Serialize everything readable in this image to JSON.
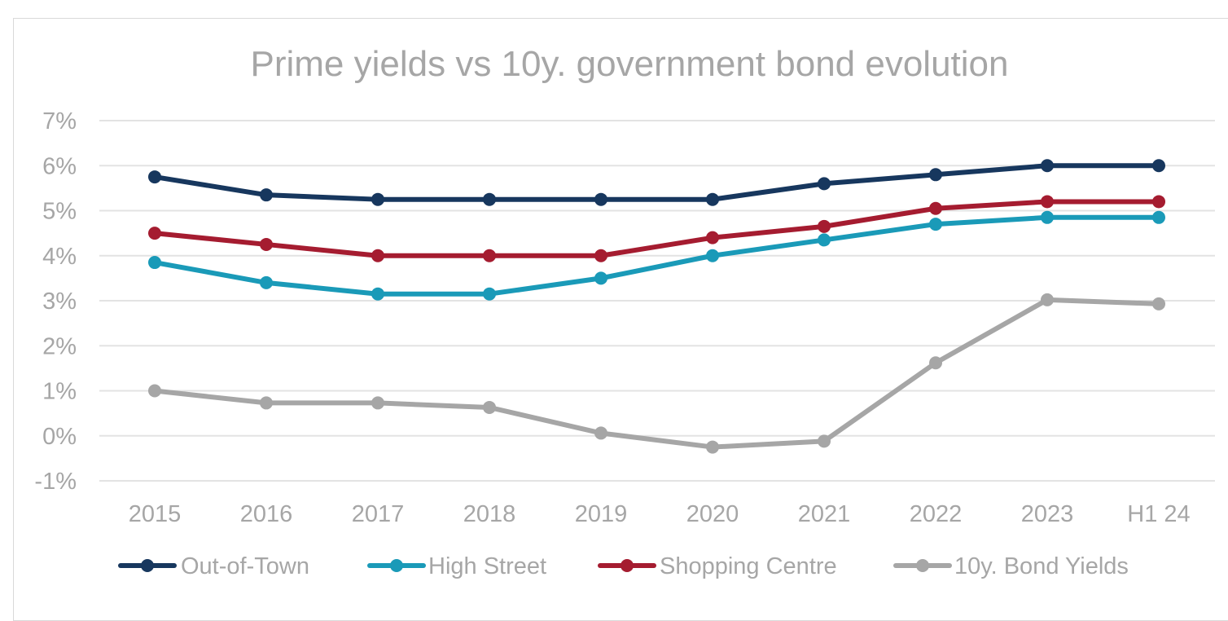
{
  "chart_data": {
    "type": "line",
    "title": "Prime yields vs 10y. government bond evolution",
    "xlabel": "",
    "ylabel": "",
    "categories": [
      "2015",
      "2016",
      "2017",
      "2018",
      "2019",
      "2020",
      "2021",
      "2022",
      "2023",
      "H1 24"
    ],
    "ylim": [
      -1,
      7
    ],
    "yticks": [
      -1,
      0,
      1,
      2,
      3,
      4,
      5,
      6,
      7
    ],
    "ytick_labels": [
      "-1%",
      "0%",
      "1%",
      "2%",
      "3%",
      "4%",
      "5%",
      "6%",
      "7%"
    ],
    "grid": true,
    "legend_position": "bottom",
    "series": [
      {
        "name": "Out-of-Town",
        "color": "#17375e",
        "values": [
          5.75,
          5.35,
          5.25,
          5.25,
          5.25,
          5.25,
          5.6,
          5.8,
          6.0,
          6.0
        ]
      },
      {
        "name": "High Street",
        "color": "#1a9ab8",
        "values": [
          3.85,
          3.4,
          3.15,
          3.15,
          3.5,
          4.0,
          4.35,
          4.7,
          4.85,
          4.85
        ]
      },
      {
        "name": "Shopping Centre",
        "color": "#a51c30",
        "values": [
          4.5,
          4.25,
          4.0,
          4.0,
          4.0,
          4.4,
          4.65,
          5.05,
          5.2,
          5.2
        ]
      },
      {
        "name": "10y. Bond Yields",
        "color": "#a6a6a6",
        "values": [
          1.0,
          0.73,
          0.73,
          0.63,
          0.06,
          -0.25,
          -0.12,
          1.62,
          3.02,
          2.93
        ]
      }
    ]
  }
}
